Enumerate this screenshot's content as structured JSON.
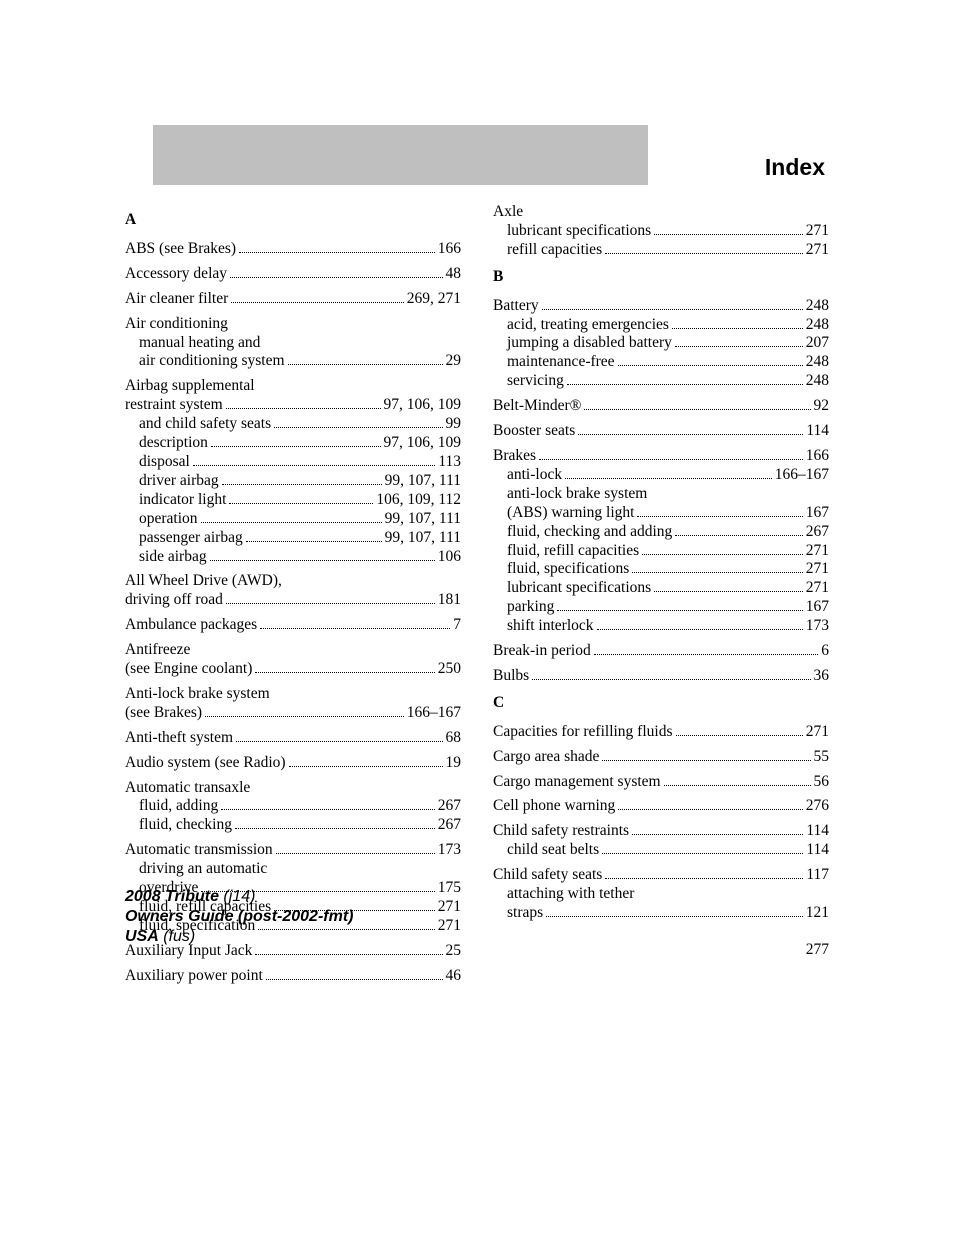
{
  "header": {
    "title": "Index"
  },
  "page_number": "277",
  "footer": {
    "l1a": "2008 Tribute",
    "l1b": "(j14)",
    "l2": "Owners Guide (post-2002-fmt)",
    "l3a": "USA",
    "l3b": "(fus)"
  },
  "colors": {
    "header_grey": "#bfbfbf",
    "text": "#000000",
    "background": "#ffffff"
  },
  "typography": {
    "body_font": "Century Schoolbook / Georgia serif",
    "body_size_pt": 11.5,
    "header_font": "Arial bold",
    "header_size_pt": 17,
    "footer_font": "Arial",
    "footer_size_pt": 12
  },
  "left": {
    "A": "A",
    "e1": {
      "t": "ABS (see Brakes)",
      "p": "166"
    },
    "e2": {
      "t": "Accessory delay",
      "p": "48"
    },
    "e3": {
      "t": "Air cleaner filter",
      "p": "269, 271"
    },
    "e4h": "Air conditioning",
    "e4s1a": "manual heating and",
    "e4s1b": {
      "t": "air conditioning system",
      "p": "29"
    },
    "e5h": "Airbag supplemental",
    "e5a": {
      "t": "restraint system",
      "p": "97, 106, 109"
    },
    "e5s1": {
      "t": "and child safety seats",
      "p": "99"
    },
    "e5s2": {
      "t": "description",
      "p": "97, 106, 109"
    },
    "e5s3": {
      "t": "disposal",
      "p": "113"
    },
    "e5s4": {
      "t": "driver airbag",
      "p": "99, 107, 111"
    },
    "e5s5": {
      "t": "indicator light",
      "p": "106, 109, 112"
    },
    "e5s6": {
      "t": "operation",
      "p": "99, 107, 111"
    },
    "e5s7": {
      "t": "passenger airbag",
      "p": "99, 107, 111"
    },
    "e5s8": {
      "t": "side airbag",
      "p": "106"
    },
    "e6a": "All Wheel Drive (AWD),",
    "e6b": {
      "t": "driving off road",
      "p": "181"
    },
    "e7": {
      "t": "Ambulance packages",
      "p": "7"
    },
    "e8a": "Antifreeze",
    "e8b": {
      "t": "(see Engine coolant)",
      "p": "250"
    },
    "e9a": "Anti-lock brake system",
    "e9b": {
      "t": "(see Brakes)",
      "p": "166–167"
    },
    "e10": {
      "t": "Anti-theft system",
      "p": "68"
    },
    "e11": {
      "t": "Audio system (see Radio)",
      "p": "19"
    },
    "e12h": "Automatic transaxle",
    "e12s1": {
      "t": "fluid, adding",
      "p": "267"
    },
    "e12s2": {
      "t": "fluid, checking",
      "p": "267"
    },
    "e13": {
      "t": "Automatic transmission",
      "p": "173"
    },
    "e13s1a": "driving an automatic",
    "e13s1b": {
      "t": "overdrive",
      "p": "175"
    },
    "e13s2": {
      "t": "fluid, refill capacities",
      "p": "271"
    },
    "e13s3": {
      "t": "fluid, specification",
      "p": "271"
    },
    "e14": {
      "t": "Auxiliary Input Jack",
      "p": "25"
    },
    "e15": {
      "t": "Auxiliary power point",
      "p": "46"
    }
  },
  "right": {
    "axle_h": "Axle",
    "axle_s1": {
      "t": "lubricant specifications",
      "p": "271"
    },
    "axle_s2": {
      "t": "refill capacities",
      "p": "271"
    },
    "B": "B",
    "b1": {
      "t": "Battery",
      "p": "248"
    },
    "b1s1": {
      "t": "acid, treating emergencies",
      "p": "248"
    },
    "b1s2": {
      "t": "jumping a disabled battery",
      "p": "207"
    },
    "b1s3": {
      "t": "maintenance-free",
      "p": "248"
    },
    "b1s4": {
      "t": "servicing",
      "p": "248"
    },
    "b2": {
      "t": "Belt-Minder®",
      "p": "92"
    },
    "b3": {
      "t": "Booster seats",
      "p": "114"
    },
    "b4": {
      "t": "Brakes",
      "p": "166"
    },
    "b4s1": {
      "t": "anti-lock",
      "p": "166–167"
    },
    "b4s2a": "anti-lock brake system",
    "b4s2b": {
      "t": "(ABS) warning light",
      "p": "167"
    },
    "b4s3": {
      "t": "fluid, checking and adding",
      "p": "267"
    },
    "b4s4": {
      "t": "fluid, refill capacities",
      "p": "271"
    },
    "b4s5": {
      "t": "fluid, specifications",
      "p": "271"
    },
    "b4s6": {
      "t": "lubricant specifications",
      "p": "271"
    },
    "b4s7": {
      "t": "parking",
      "p": "167"
    },
    "b4s8": {
      "t": "shift interlock",
      "p": "173"
    },
    "b5": {
      "t": "Break-in period",
      "p": "6"
    },
    "b6": {
      "t": "Bulbs",
      "p": "36"
    },
    "C": "C",
    "c1": {
      "t": "Capacities for refilling fluids",
      "p": "271"
    },
    "c2": {
      "t": "Cargo area shade",
      "p": "55"
    },
    "c3": {
      "t": "Cargo management system",
      "p": "56"
    },
    "c4": {
      "t": "Cell phone warning",
      "p": "276"
    },
    "c5": {
      "t": "Child safety restraints",
      "p": "114"
    },
    "c5s1": {
      "t": "child seat belts",
      "p": "114"
    },
    "c6": {
      "t": "Child safety seats",
      "p": "117"
    },
    "c6s1a": "attaching with tether",
    "c6s1b": {
      "t": "straps",
      "p": "121"
    }
  }
}
